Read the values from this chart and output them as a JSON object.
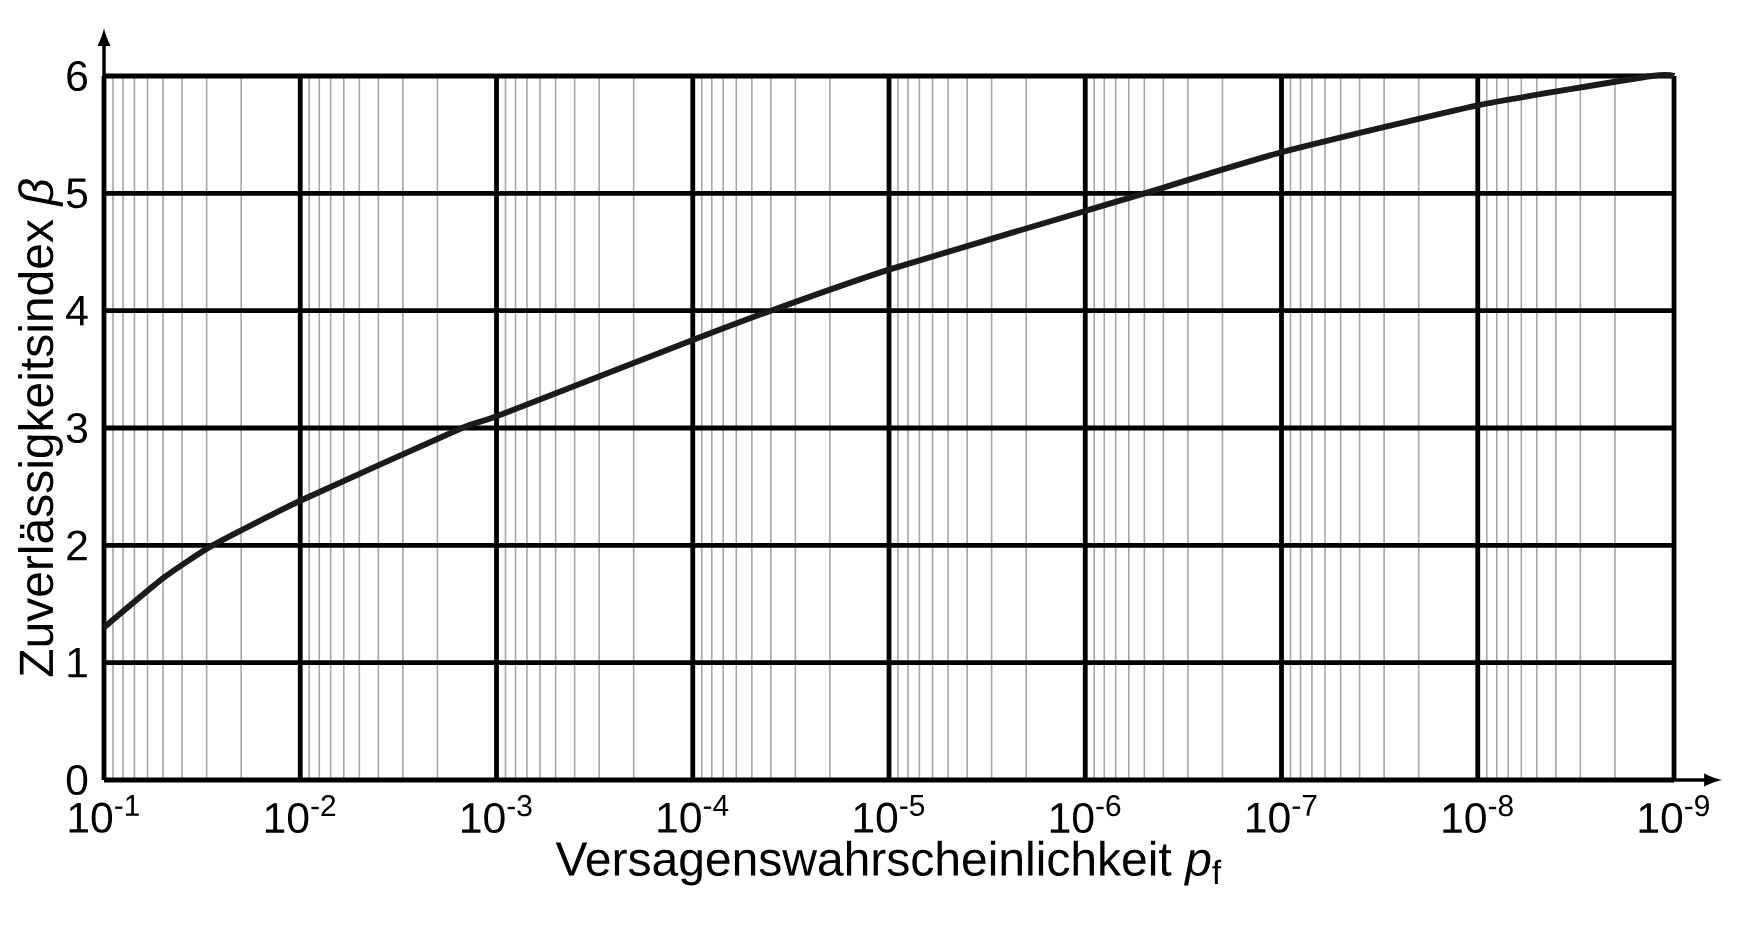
{
  "chart_data": {
    "type": "line",
    "xlabel": "Versagenswahrscheinlichkeit *p*$_{f}$",
    "ylabel": "Zuverlässigkeitsindex *β*",
    "x": [
      0.1,
      0.05,
      0.028,
      0.01,
      0.0015,
      0.001,
      0.0001,
      4e-05,
      1e-05,
      1e-06,
      5e-07,
      1e-07,
      1e-08,
      1.3e-09,
      1e-09
    ],
    "series": [
      {
        "color": "#1a1a1a",
        "values": [
          1.3,
          1.72,
          2.0,
          2.38,
          3.0,
          3.1,
          3.75,
          4.0,
          4.35,
          4.85,
          5.0,
          5.35,
          5.75,
          6.0,
          6.0
        ]
      }
    ],
    "xlim": [
      0.1,
      1e-09
    ],
    "ylim": [
      0,
      6
    ],
    "xticks": [
      {
        "value": 0.1,
        "label": "10$^{-1}$"
      },
      {
        "value": 0.01,
        "label": "10$^{-2}$"
      },
      {
        "value": 0.001,
        "label": "10$^{-3}$"
      },
      {
        "value": 0.0001,
        "label": "10$^{-4}$"
      },
      {
        "value": 1e-05,
        "label": "10$^{-5}$"
      },
      {
        "value": 1e-06,
        "label": "10$^{-6}$"
      },
      {
        "value": 1e-07,
        "label": "10$^{-7}$"
      },
      {
        "value": 1e-08,
        "label": "10$^{-8}$"
      },
      {
        "value": 1e-09,
        "label": "10$^{-9}$"
      }
    ],
    "yticks": [
      0,
      1,
      2,
      3,
      4,
      5,
      6
    ],
    "log": "x",
    "grid": true,
    "marker": "none",
    "line_style": "solid"
  }
}
